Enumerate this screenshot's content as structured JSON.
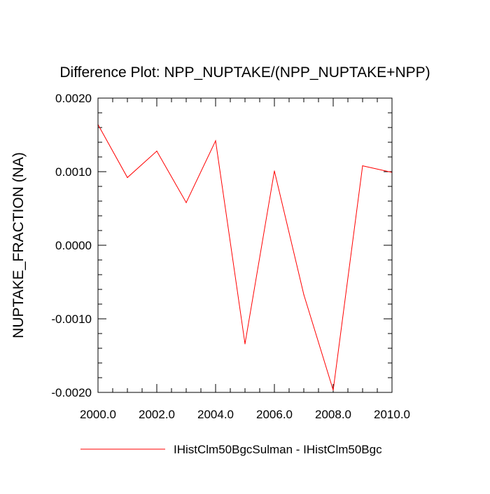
{
  "chart_data": {
    "type": "line",
    "title": "Difference Plot: NPP_NUPTAKE/(NPP_NUPTAKE+NPP)",
    "xlabel": "",
    "ylabel": "NUPTAKE_FRACTION  (NA)",
    "xlim": [
      2000,
      2010
    ],
    "ylim": [
      -0.002,
      0.002
    ],
    "x_ticks": [
      {
        "value": 2000,
        "label": "2000.0"
      },
      {
        "value": 2002,
        "label": "2002.0"
      },
      {
        "value": 2004,
        "label": "2004.0"
      },
      {
        "value": 2006,
        "label": "2006.0"
      },
      {
        "value": 2008,
        "label": "2008.0"
      },
      {
        "value": 2010,
        "label": "2010.0"
      }
    ],
    "y_ticks": [
      {
        "value": 0.002,
        "label": "0.0020"
      },
      {
        "value": 0.001,
        "label": "0.0010"
      },
      {
        "value": 0.0,
        "label": "0.0000"
      },
      {
        "value": -0.001,
        "label": "-0.0010"
      },
      {
        "value": -0.002,
        "label": "-0.0020"
      }
    ],
    "x_minor_step": 0.5,
    "y_minor_step": 0.0002,
    "grid": false,
    "legend_position": "bottom",
    "series": [
      {
        "name": "IHistClm50BgcSulman - IHistClm50Bgc",
        "color": "#ff0000",
        "x": [
          2000,
          2001,
          2002,
          2003,
          2004,
          2005,
          2006,
          2007,
          2008,
          2009,
          2010
        ],
        "values": [
          0.00164,
          0.00092,
          0.00128,
          0.00058,
          0.00142,
          -0.00134,
          0.00101,
          -0.00067,
          -0.00197,
          0.00108,
          0.00099
        ]
      }
    ]
  }
}
